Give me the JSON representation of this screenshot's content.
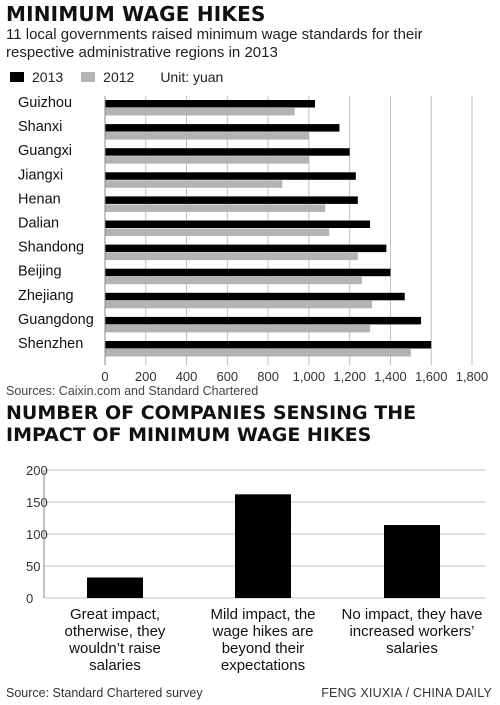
{
  "chart_data": [
    {
      "type": "bar",
      "orientation": "horizontal",
      "title": "MINIMUM WAGE HIKES",
      "subtitle": "11 local governments raised minimum wage standards for their respective administrative regions in 2013",
      "unit": "Unit: yuan",
      "categories": [
        "Guizhou",
        "Shanxi",
        "Guangxi",
        "Jiangxi",
        "Henan",
        "Dalian",
        "Shandong",
        "Beijing",
        "Zhejiang",
        "Guangdong",
        "Shenzhen"
      ],
      "series": [
        {
          "name": "2013",
          "color": "#000000",
          "values": [
            1030,
            1150,
            1200,
            1230,
            1240,
            1300,
            1380,
            1400,
            1470,
            1550,
            1600
          ]
        },
        {
          "name": "2012",
          "color": "#b3b3b3",
          "values": [
            930,
            1000,
            1000,
            870,
            1080,
            1100,
            1240,
            1260,
            1310,
            1300,
            1500
          ]
        }
      ],
      "xlim": [
        0,
        1800
      ],
      "xticks": [
        "0",
        "200",
        "400",
        "600",
        "800",
        "1,000",
        "1,200",
        "1,400",
        "1,600",
        "1,800"
      ],
      "grid": true,
      "legend": "top-left",
      "source": "Sources: Caixin.com and Standard Chartered"
    },
    {
      "type": "bar",
      "title": "NUMBER OF COMPANIES SENSING THE IMPACT OF MINIMUM WAGE HIKES",
      "categories": [
        "Great impact, otherwise, they wouldn’t raise salaries",
        "Mild impact, the wage hikes are beyond their expectations",
        "No impact, they have increased workers’ salaries"
      ],
      "values": [
        32,
        162,
        114
      ],
      "ylim": [
        0,
        200
      ],
      "yticks": [
        "0",
        "50",
        "100",
        "150",
        "200"
      ],
      "grid": true,
      "source": "Source: Standard Chartered survey"
    }
  ],
  "credit": "FENG XIUXIA / CHINA DAILY",
  "colors": {
    "bar2013": "#000000",
    "bar2012": "#b3b3b3",
    "grid": "#bfbfbf"
  }
}
